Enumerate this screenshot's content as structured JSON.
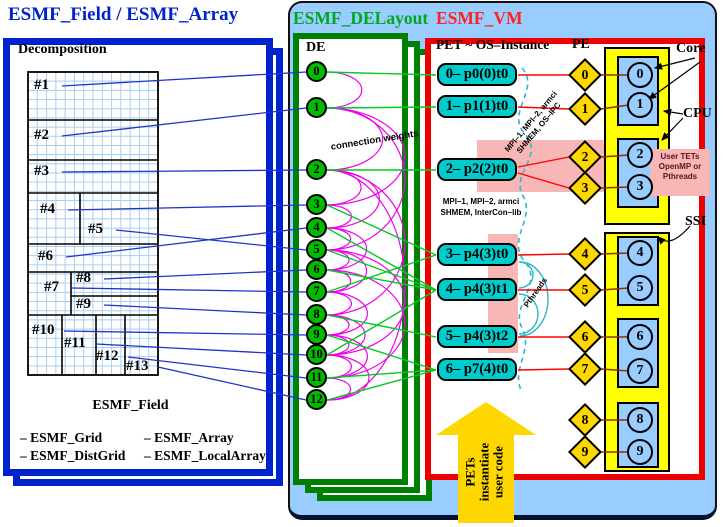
{
  "titles": {
    "field_array": "ESMF_Field / ESMF_Array",
    "delayout": "ESMF_DELayout",
    "vm": "ESMF_VM"
  },
  "decomposition": {
    "heading": "Decomposition",
    "regions": [
      "#1",
      "#2",
      "#3",
      "#4",
      "#5",
      "#6",
      "#7",
      "#8",
      "#9",
      "#10",
      "#11",
      "#12",
      "#13"
    ]
  },
  "footer": {
    "title": "ESMF_Field",
    "left": [
      "– ESMF_Grid",
      "– ESMF_DistGrid"
    ],
    "right": [
      "– ESMF_Array",
      "– ESMF_LocalArray"
    ]
  },
  "delayout": {
    "header": "DE",
    "des": [
      "0",
      "1",
      "2",
      "3",
      "4",
      "5",
      "6",
      "7",
      "8",
      "9",
      "10",
      "11",
      "12"
    ],
    "connection_label": "connection weights"
  },
  "vm": {
    "pet_header": "PET ~ OS–Instance",
    "pe_header": "PE",
    "pets": [
      "0– p0(0)t0",
      "1– p1(1)t0",
      "2– p2(2)t0",
      "3– p4(3)t0",
      "4– p4(3)t1",
      "5– p4(3)t2",
      "6– p7(4)t0"
    ],
    "pes": [
      "0",
      "1",
      "2",
      "3",
      "4",
      "5",
      "6",
      "7",
      "8",
      "9"
    ],
    "cores": [
      "0",
      "1",
      "2",
      "3",
      "4",
      "5",
      "6",
      "7",
      "8",
      "9"
    ],
    "core_label": "Core",
    "cpu_label": "CPU",
    "ssi_label": "SSI",
    "user_tets": [
      "User TETs",
      "OpenMP or",
      "Pthreads"
    ],
    "mpi_top": [
      "MPI–1, MPI–2, armci",
      "SHMEM, OS–IPC"
    ],
    "mpi_mid": [
      "MPI–1, MPI–2, armci",
      "SHMEM, InterCon–lib"
    ],
    "pthreads": "Pthreads",
    "arrow_lines": [
      "PETs",
      "instantiate",
      "user code"
    ]
  },
  "connections": {
    "region_to_de": [
      0,
      1,
      2,
      3,
      5,
      4,
      7,
      6,
      8,
      9,
      10,
      11,
      12
    ],
    "de_to_pet": [
      0,
      1,
      2,
      3,
      4,
      4,
      4,
      3,
      5,
      6,
      4,
      6,
      6
    ],
    "pet_to_pe": [
      [
        0,
        0,
        75,
        75
      ],
      [
        1,
        1,
        107,
        109
      ],
      [
        2,
        2,
        167,
        157
      ],
      [
        2,
        3,
        173,
        188
      ],
      [
        3,
        4,
        255,
        254
      ],
      [
        4,
        5,
        290,
        290
      ],
      [
        5,
        6,
        337,
        337
      ],
      [
        6,
        7,
        370,
        369
      ]
    ],
    "pe_to_core": [
      0,
      1,
      2,
      3,
      4,
      5,
      6,
      7,
      8,
      9
    ],
    "weight_arcs": [
      [
        0,
        1
      ],
      [
        1,
        2
      ],
      [
        2,
        3
      ],
      [
        3,
        4
      ],
      [
        4,
        5
      ],
      [
        5,
        6
      ],
      [
        6,
        7
      ],
      [
        7,
        8
      ],
      [
        8,
        9
      ],
      [
        9,
        10
      ],
      [
        10,
        11
      ],
      [
        11,
        12
      ],
      [
        1,
        3
      ],
      [
        2,
        4
      ],
      [
        4,
        6
      ],
      [
        5,
        7
      ],
      [
        7,
        9
      ],
      [
        8,
        10
      ],
      [
        9,
        11
      ],
      [
        10,
        12
      ],
      [
        1,
        5
      ],
      [
        2,
        8
      ],
      [
        5,
        10
      ],
      [
        6,
        11
      ],
      [
        2,
        12
      ]
    ]
  },
  "colors": {
    "panel": "#99CCFF",
    "field_border": "#0022CC",
    "delayout_border": "#008000",
    "vm_border": "#EE0000",
    "de_fill": "#00BB00",
    "pet_fill": "#00CCCC",
    "pe_fill": "#FFD700",
    "cpu_fill": "#99CCFF",
    "ssi_fill": "#FFFF00",
    "highlight": "#F9B6B6",
    "magenta": "#EE00EE",
    "cyan": "#29B8CC",
    "green_line": "#00CC22",
    "blue_line": "#2233CC",
    "red_line": "#FF0000",
    "core_line": "#8B3200",
    "arrow": "#FFD700",
    "grid_line": "#A9CFEF"
  }
}
